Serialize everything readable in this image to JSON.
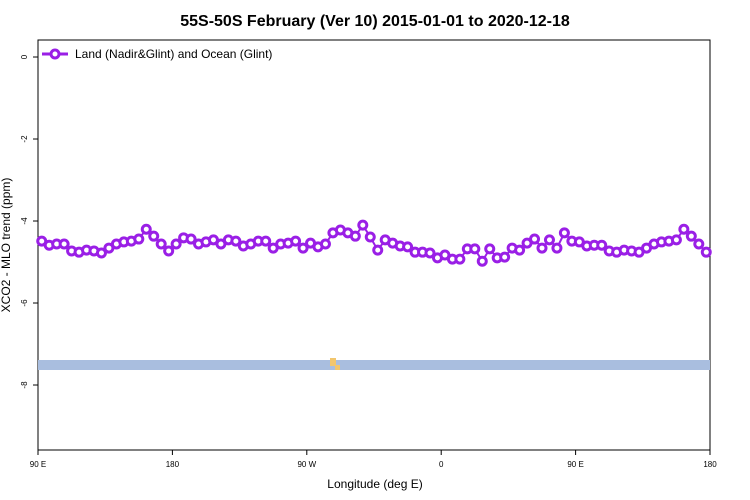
{
  "chart_data": {
    "type": "line",
    "title": "55S-50S February (Ver 10)   2015-01-01 to 2020-12-18",
    "x_label": "Longitude (deg E)",
    "y_label": "XCO2 - MLO trend (ppm)",
    "xlim": [
      90,
      540
    ],
    "xticks": [
      {
        "value": 90,
        "label": "90 E"
      },
      180,
      {
        "value": 270,
        "label": "90 W"
      },
      {
        "value": 360,
        "label": "0"
      },
      {
        "value": 450,
        "label": "90 E"
      },
      {
        "value": 540,
        "label": "180"
      }
    ],
    "ylim": [
      -9.585,
      0.415
    ],
    "yticks": [
      0,
      -2,
      -4,
      -6,
      -8
    ],
    "x": [
      92.5,
      97.5,
      102.5,
      107.5,
      112.5,
      117.5,
      122.5,
      127.5,
      132.5,
      137.5,
      142.5,
      147.5,
      152.5,
      157.5,
      162.5,
      167.5,
      172.5,
      177.5,
      182.5,
      187.5,
      192.5,
      197.5,
      202.5,
      207.5,
      212.5,
      217.5,
      222.5,
      227.5,
      232.5,
      237.5,
      242.5,
      247.5,
      252.5,
      257.5,
      262.5,
      267.5,
      272.5,
      277.5,
      282.5,
      287.5,
      292.5,
      297.5,
      302.5,
      307.5,
      312.5,
      317.5,
      322.5,
      327.5,
      332.5,
      337.5,
      342.5,
      347.5,
      352.5,
      357.5,
      362.5,
      367.5,
      372.5,
      377.5,
      382.5,
      387.5,
      392.5,
      397.5,
      402.5,
      407.5,
      412.5,
      417.5,
      422.5,
      427.5,
      432.5,
      437.5,
      442.5,
      447.5,
      452.5,
      457.5,
      462.5,
      467.5,
      472.5,
      477.5,
      482.5,
      487.5,
      492.5,
      497.5,
      502.5,
      507.5,
      512.5,
      517.5,
      522.5,
      527.5,
      532.5,
      537.5
    ],
    "series": [
      {
        "name": "Land (Nadir&Glint) and Ocean (Glint)",
        "color": "#9a1fe6",
        "values": [
          -4.49,
          -4.59,
          -4.56,
          -4.56,
          -4.73,
          -4.76,
          -4.71,
          -4.73,
          -4.78,
          -4.66,
          -4.56,
          -4.51,
          -4.49,
          -4.44,
          -4.2,
          -4.37,
          -4.56,
          -4.73,
          -4.56,
          -4.41,
          -4.44,
          -4.56,
          -4.51,
          -4.46,
          -4.56,
          -4.46,
          -4.49,
          -4.61,
          -4.56,
          -4.49,
          -4.49,
          -4.66,
          -4.56,
          -4.54,
          -4.49,
          -4.66,
          -4.54,
          -4.63,
          -4.56,
          -4.29,
          -4.22,
          -4.29,
          -4.37,
          -4.1,
          -4.39,
          -4.71,
          -4.46,
          -4.54,
          -4.61,
          -4.63,
          -4.76,
          -4.76,
          -4.78,
          -4.9,
          -4.83,
          -4.93,
          -4.93,
          -4.68,
          -4.68,
          -4.98,
          -4.68,
          -4.9,
          -4.88,
          -4.66,
          -4.71,
          -4.54,
          -4.44,
          -4.66,
          -4.46,
          -4.66,
          -4.29,
          -4.49,
          -4.51,
          -4.61,
          -4.59,
          -4.59,
          -4.73,
          -4.76,
          -4.71,
          -4.73,
          -4.76,
          -4.66,
          -4.56,
          -4.51,
          -4.49,
          -4.46,
          -4.2,
          -4.37,
          -4.56,
          -4.76
        ]
      }
    ]
  }
}
